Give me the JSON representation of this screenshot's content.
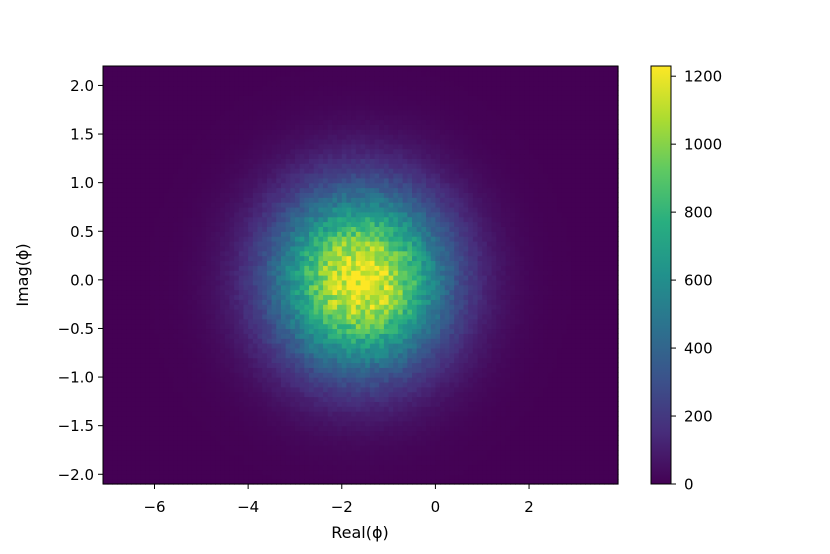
{
  "chart_data": {
    "type": "heatmap",
    "title": "",
    "xlabel": "Real(ϕ)",
    "ylabel": "Imag(ϕ)",
    "xlim": [
      -7.1,
      3.9
    ],
    "ylim": [
      -2.1,
      2.2
    ],
    "xticks": [
      -6,
      -4,
      -2,
      0,
      2
    ],
    "xtick_labels": [
      "−6",
      "−4",
      "−2",
      "0",
      "2"
    ],
    "yticks": [
      2.0,
      1.5,
      1.0,
      0.5,
      0.0,
      -0.5,
      -1.0,
      -1.5,
      -2.0
    ],
    "ytick_labels": [
      "2.0",
      "1.5",
      "1.0",
      "0.5",
      "0.0",
      "−0.5",
      "−1.0",
      "−1.5",
      "−2.0"
    ],
    "colormap": "viridis",
    "colorbar": {
      "range": [
        0,
        1230
      ],
      "ticks": [
        0,
        200,
        400,
        600,
        800,
        1000,
        1200
      ],
      "tick_labels": [
        "0",
        "200",
        "400",
        "600",
        "800",
        "1000",
        "1200"
      ]
    },
    "distribution": {
      "center": [
        -1.6,
        0.0
      ],
      "peak": 1220,
      "bins": [
        110,
        86
      ]
    },
    "grid": false
  }
}
